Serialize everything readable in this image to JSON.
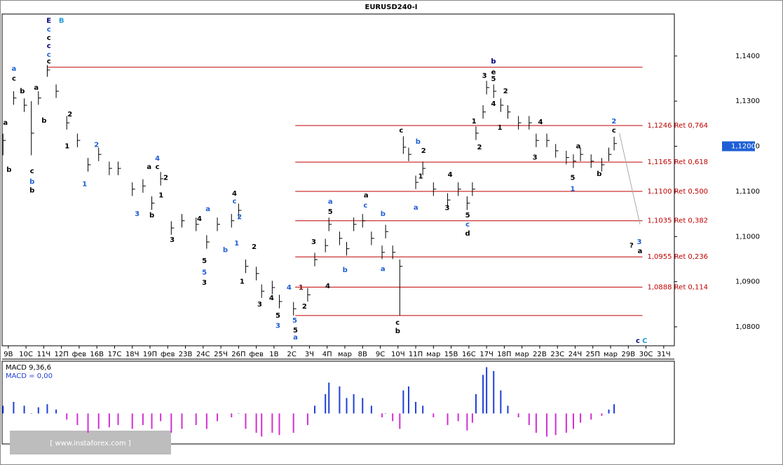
{
  "chart_data": {
    "type": "ohlc",
    "title": "EURUSD240-I",
    "bar_color": "#000000",
    "x": [
      -0.3,
      0.3,
      0.9,
      1.3,
      1.7,
      2.2,
      2.7,
      3.3,
      3.9,
      4.5,
      5.1,
      5.7,
      6.2,
      7.0,
      7.6,
      8.1,
      8.6,
      9.2,
      9.8,
      10.6,
      11.2,
      11.8,
      12.6,
      13.0,
      13.4,
      14.0,
      14.3,
      14.9,
      15.3,
      16.1,
      16.9,
      17.3,
      17.9,
      18.1,
      18.7,
      19.1,
      19.5,
      20.0,
      20.5,
      21.1,
      21.3,
      21.7,
      22.1,
      22.3,
      22.6,
      23.0,
      23.4,
      24.0,
      24.8,
      25.4,
      25.9,
      26.2,
      26.4,
      26.8,
      27.0,
      27.4,
      27.8,
      28.2,
      28.8,
      29.4,
      29.8,
      30.4,
      30.9,
      31.5,
      31.9,
      32.3,
      32.9,
      33.5,
      33.9,
      34.2
    ],
    "high": [
      1.1228,
      1.1322,
      1.1306,
      1.13,
      1.1322,
      1.138,
      1.1337,
      1.1267,
      1.1228,
      1.1174,
      1.1197,
      1.1166,
      1.1166,
      1.112,
      1.1127,
      1.1089,
      1.1143,
      1.1034,
      1.105,
      1.1042,
      1.1003,
      1.1042,
      1.105,
      1.1073,
      1.0949,
      1.0933,
      1.0894,
      1.0902,
      1.0871,
      1.0855,
      1.0886,
      1.0964,
      1.0995,
      1.1042,
      1.1011,
      1.0988,
      1.1042,
      1.105,
      1.1011,
      1.098,
      1.1026,
      1.098,
      1.0949,
      1.1222,
      1.1197,
      1.1135,
      1.1166,
      1.112,
      1.1096,
      1.112,
      1.1089,
      1.112,
      1.1244,
      1.1291,
      1.1345,
      1.1337,
      1.1306,
      1.1291,
      1.1267,
      1.1267,
      1.1228,
      1.1228,
      1.1205,
      1.119,
      1.1182,
      1.1197,
      1.1182,
      1.1174,
      1.1197,
      1.1221
    ],
    "low": [
      1.118,
      1.1292,
      1.1276,
      1.118,
      1.1292,
      1.1354,
      1.1307,
      1.1237,
      1.1198,
      1.1144,
      1.1167,
      1.1136,
      1.1136,
      1.109,
      1.1097,
      1.1059,
      1.1113,
      1.1004,
      1.102,
      1.1012,
      1.0973,
      1.1012,
      1.102,
      1.1043,
      1.0919,
      1.0903,
      1.0864,
      1.0872,
      1.0841,
      1.0825,
      1.0856,
      1.0934,
      1.0965,
      1.1012,
      1.0981,
      1.0958,
      1.1012,
      1.102,
      1.0981,
      1.095,
      1.0996,
      1.095,
      1.0825,
      1.1183,
      1.1167,
      1.1105,
      1.1136,
      1.109,
      1.1066,
      1.109,
      1.1059,
      1.109,
      1.1214,
      1.1261,
      1.1315,
      1.1307,
      1.1276,
      1.1261,
      1.1237,
      1.1237,
      1.1198,
      1.1198,
      1.1175,
      1.116,
      1.1152,
      1.1167,
      1.1152,
      1.1144,
      1.1167,
      1.1191
    ],
    "close": [
      1.1213,
      1.1307,
      1.1291,
      1.1229,
      1.1307,
      1.1369,
      1.1322,
      1.1252,
      1.1213,
      1.1159,
      1.1182,
      1.1151,
      1.1151,
      1.1105,
      1.1112,
      1.1074,
      1.1128,
      1.1019,
      1.1035,
      1.1027,
      1.0988,
      1.1027,
      1.1035,
      1.1058,
      1.0934,
      1.0918,
      1.0879,
      1.0887,
      1.0856,
      1.084,
      1.0871,
      1.0949,
      1.098,
      1.1027,
      1.0996,
      1.0973,
      1.1027,
      1.1035,
      1.0996,
      1.0965,
      1.1011,
      1.0965,
      1.0934,
      1.1198,
      1.1182,
      1.112,
      1.1151,
      1.1105,
      1.1081,
      1.1105,
      1.1074,
      1.1105,
      1.1229,
      1.1276,
      1.133,
      1.1322,
      1.1291,
      1.1276,
      1.1252,
      1.1252,
      1.1213,
      1.1213,
      1.119,
      1.1175,
      1.1167,
      1.1182,
      1.1167,
      1.1159,
      1.1182,
      1.1206
    ],
    "xlim": [
      -0.35,
      37.6
    ],
    "xticks": [
      {
        "value": 0,
        "label": "9В"
      },
      {
        "value": 1,
        "label": "10С"
      },
      {
        "value": 2,
        "label": "11Ч"
      },
      {
        "value": 3,
        "label": "12П"
      },
      {
        "value": 4,
        "label": "фев"
      },
      {
        "value": 5,
        "label": "16В"
      },
      {
        "value": 6,
        "label": "17С"
      },
      {
        "value": 7,
        "label": "18Ч"
      },
      {
        "value": 8,
        "label": "19П"
      },
      {
        "value": 9,
        "label": "фев"
      },
      {
        "value": 10,
        "label": "23В"
      },
      {
        "value": 11,
        "label": "24С"
      },
      {
        "value": 12,
        "label": "25Ч"
      },
      {
        "value": 13,
        "label": "26П"
      },
      {
        "value": 14,
        "label": "фев"
      },
      {
        "value": 15,
        "label": "1В"
      },
      {
        "value": 16,
        "label": "2С"
      },
      {
        "value": 17,
        "label": "3Ч"
      },
      {
        "value": 18,
        "label": "4П"
      },
      {
        "value": 19,
        "label": "мар"
      },
      {
        "value": 20,
        "label": "8В"
      },
      {
        "value": 21,
        "label": "9С"
      },
      {
        "value": 22,
        "label": "10Ч"
      },
      {
        "value": 23,
        "label": "11П"
      },
      {
        "value": 24,
        "label": "мар"
      },
      {
        "value": 25,
        "label": "15В"
      },
      {
        "value": 26,
        "label": "16С"
      },
      {
        "value": 27,
        "label": "17Ч"
      },
      {
        "value": 28,
        "label": "18П"
      },
      {
        "value": 29,
        "label": "мар"
      },
      {
        "value": 30,
        "label": "22В"
      },
      {
        "value": 31,
        "label": "23С"
      },
      {
        "value": 32,
        "label": "24Ч"
      },
      {
        "value": 33,
        "label": "25П"
      },
      {
        "value": 34,
        "label": "мар"
      },
      {
        "value": 35,
        "label": "29В"
      },
      {
        "value": 36,
        "label": "30С"
      },
      {
        "value": 37,
        "label": "31Ч"
      }
    ],
    "ylim": [
      1.0758,
      1.1493
    ],
    "yticks": [
      {
        "value": 1.14,
        "label": "1,1400"
      },
      {
        "value": 1.13,
        "label": "1,1300"
      },
      {
        "value": 1.12,
        "label": "1,1200"
      },
      {
        "value": 1.11,
        "label": "1,1100"
      },
      {
        "value": 1.1,
        "label": "1,1000"
      },
      {
        "value": 1.09,
        "label": "1,0900"
      },
      {
        "value": 1.08,
        "label": "1,0800"
      }
    ],
    "last_price": {
      "value": 1.12,
      "label": "1,1200",
      "color": "#1f5fd6"
    },
    "level_color": "#c00000",
    "levels": [
      1.1375,
      1.0825
    ],
    "fib_levels": [
      {
        "value": 1.1246,
        "label": "1,1246 Ret 0,764"
      },
      {
        "value": 1.1165,
        "label": "1,1165 Ret 0,618"
      },
      {
        "value": 1.11,
        "label": "1,1100 Ret 0,500"
      },
      {
        "value": 1.1035,
        "label": "1,1035 Ret 0,382"
      },
      {
        "value": 1.0955,
        "label": "1,0955 Ret 0,236"
      },
      {
        "value": 1.0888,
        "label": "1,0888 Ret 0,114"
      }
    ],
    "fib_start": 16.2,
    "projection": {
      "color": "#aaaaaa",
      "x": [
        34.5,
        35.66
      ],
      "y": [
        1.1229,
        1.1027
      ]
    },
    "annotations": [
      {
        "text": "E",
        "x": 2.29,
        "y": 1.1478,
        "color": "#000080"
      },
      {
        "text": "B",
        "x": 3.0,
        "y": 1.1478,
        "color": "#1e9ad6"
      },
      {
        "text": "c",
        "x": 2.29,
        "y": 1.1459,
        "color": "#1f5fd6"
      },
      {
        "text": "c",
        "x": 2.29,
        "y": 1.144,
        "color": "#000000"
      },
      {
        "text": "c",
        "x": 2.29,
        "y": 1.1422,
        "color": "#000080"
      },
      {
        "text": "c",
        "x": 2.29,
        "y": 1.1403,
        "color": "#1f5fd6"
      },
      {
        "text": "c",
        "x": 2.29,
        "y": 1.1388,
        "color": "#000000"
      },
      {
        "text": "a",
        "x": 0.32,
        "y": 1.1372,
        "color": "#1f5fd6"
      },
      {
        "text": "c",
        "x": 0.32,
        "y": 1.135,
        "color": "#000000"
      },
      {
        "text": "b",
        "x": 0.79,
        "y": 1.1322,
        "color": "#000000"
      },
      {
        "text": "a",
        "x": 1.58,
        "y": 1.133,
        "color": "#000000"
      },
      {
        "text": "a",
        "x": -0.16,
        "y": 1.1252,
        "color": "#000000"
      },
      {
        "text": "b",
        "x": 0.04,
        "y": 1.1148,
        "color": "#000000"
      },
      {
        "text": "c",
        "x": 1.34,
        "y": 1.1145,
        "color": "#000000"
      },
      {
        "text": "b",
        "x": 1.34,
        "y": 1.1122,
        "color": "#1f5fd6"
      },
      {
        "text": "b",
        "x": 1.34,
        "y": 1.1102,
        "color": "#000000"
      },
      {
        "text": "b",
        "x": 2.02,
        "y": 1.1257,
        "color": "#000000"
      },
      {
        "text": "2",
        "x": 3.48,
        "y": 1.1271,
        "color": "#000000"
      },
      {
        "text": "1",
        "x": 3.32,
        "y": 1.12,
        "color": "#000000"
      },
      {
        "text": "2",
        "x": 4.98,
        "y": 1.1203,
        "color": "#1f5fd6"
      },
      {
        "text": "1",
        "x": 4.31,
        "y": 1.1116,
        "color": "#1f5fd6"
      },
      {
        "text": "4",
        "x": 8.42,
        "y": 1.1173,
        "color": "#1f5fd6"
      },
      {
        "text": "a",
        "x": 7.95,
        "y": 1.1154,
        "color": "#000000"
      },
      {
        "text": "c",
        "x": 8.42,
        "y": 1.1154,
        "color": "#000000"
      },
      {
        "text": "2",
        "x": 8.89,
        "y": 1.113,
        "color": "#000000"
      },
      {
        "text": "1",
        "x": 8.62,
        "y": 1.1091,
        "color": "#000000"
      },
      {
        "text": "3",
        "x": 7.27,
        "y": 1.105,
        "color": "#1f5fd6"
      },
      {
        "text": "b",
        "x": 8.1,
        "y": 1.1047,
        "color": "#000000"
      },
      {
        "text": "3",
        "x": 9.25,
        "y": 1.0993,
        "color": "#000000"
      },
      {
        "text": "4",
        "x": 10.79,
        "y": 1.1039,
        "color": "#000000"
      },
      {
        "text": "a",
        "x": 11.27,
        "y": 1.1061,
        "color": "#1f5fd6"
      },
      {
        "text": "b",
        "x": 12.25,
        "y": 1.097,
        "color": "#1f5fd6"
      },
      {
        "text": "5",
        "x": 11.07,
        "y": 1.0946,
        "color": "#000000"
      },
      {
        "text": "5",
        "x": 11.07,
        "y": 1.092,
        "color": "#1f5fd6"
      },
      {
        "text": "3",
        "x": 11.07,
        "y": 1.0898,
        "color": "#000000"
      },
      {
        "text": "4",
        "x": 12.77,
        "y": 1.1095,
        "color": "#000000"
      },
      {
        "text": "c",
        "x": 12.77,
        "y": 1.1078,
        "color": "#1f5fd6"
      },
      {
        "text": "2",
        "x": 13.05,
        "y": 1.1043,
        "color": "#1f5fd6"
      },
      {
        "text": "1",
        "x": 12.89,
        "y": 1.0985,
        "color": "#1f5fd6"
      },
      {
        "text": "2",
        "x": 13.88,
        "y": 1.0977,
        "color": "#000000"
      },
      {
        "text": "1",
        "x": 13.2,
        "y": 1.09,
        "color": "#000000"
      },
      {
        "text": "3",
        "x": 14.19,
        "y": 1.085,
        "color": "#000000"
      },
      {
        "text": "4",
        "x": 14.86,
        "y": 1.0864,
        "color": "#000000"
      },
      {
        "text": "5",
        "x": 15.22,
        "y": 1.0825,
        "color": "#000000"
      },
      {
        "text": "3",
        "x": 15.22,
        "y": 1.0802,
        "color": "#1f5fd6"
      },
      {
        "text": "4",
        "x": 15.85,
        "y": 1.0887,
        "color": "#1f5fd6"
      },
      {
        "text": "1",
        "x": 16.52,
        "y": 1.0887,
        "color": "#8b0000"
      },
      {
        "text": "2",
        "x": 16.72,
        "y": 1.0845,
        "color": "#000000"
      },
      {
        "text": "5",
        "x": 16.17,
        "y": 1.0814,
        "color": "#1f5fd6"
      },
      {
        "text": "5",
        "x": 16.21,
        "y": 1.0792,
        "color": "#000000"
      },
      {
        "text": "a",
        "x": 16.21,
        "y": 1.0777,
        "color": "#1f5fd6"
      },
      {
        "text": "3",
        "x": 17.24,
        "y": 1.0988,
        "color": "#000000"
      },
      {
        "text": "4",
        "x": 18.03,
        "y": 1.089,
        "color": "#000000"
      },
      {
        "text": "a",
        "x": 18.18,
        "y": 1.1077,
        "color": "#1f5fd6"
      },
      {
        "text": "5",
        "x": 18.18,
        "y": 1.1055,
        "color": "#000000"
      },
      {
        "text": "b",
        "x": 19.01,
        "y": 1.0926,
        "color": "#1f5fd6"
      },
      {
        "text": "a",
        "x": 20.2,
        "y": 1.1091,
        "color": "#000000"
      },
      {
        "text": "c",
        "x": 20.16,
        "y": 1.1069,
        "color": "#1f5fd6"
      },
      {
        "text": "b",
        "x": 21.15,
        "y": 1.105,
        "color": "#1f5fd6"
      },
      {
        "text": "a",
        "x": 21.15,
        "y": 1.0928,
        "color": "#1f5fd6"
      },
      {
        "text": "c",
        "x": 21.98,
        "y": 1.0809,
        "color": "#000000"
      },
      {
        "text": "b",
        "x": 21.98,
        "y": 1.0791,
        "color": "#000000"
      },
      {
        "text": "c",
        "x": 22.18,
        "y": 1.1235,
        "color": "#000000"
      },
      {
        "text": "b",
        "x": 23.13,
        "y": 1.121,
        "color": "#1f5fd6"
      },
      {
        "text": "2",
        "x": 23.44,
        "y": 1.119,
        "color": "#000000"
      },
      {
        "text": "1",
        "x": 23.28,
        "y": 1.1133,
        "color": "#000000"
      },
      {
        "text": "a",
        "x": 23.01,
        "y": 1.1064,
        "color": "#1f5fd6"
      },
      {
        "text": "4",
        "x": 24.94,
        "y": 1.1137,
        "color": "#000000"
      },
      {
        "text": "3",
        "x": 24.78,
        "y": 1.1063,
        "color": "#000000"
      },
      {
        "text": "5",
        "x": 25.93,
        "y": 1.1047,
        "color": "#000000"
      },
      {
        "text": "c",
        "x": 25.93,
        "y": 1.1027,
        "color": "#1f5fd6"
      },
      {
        "text": "d",
        "x": 25.93,
        "y": 1.1007,
        "color": "#000000"
      },
      {
        "text": "1",
        "x": 26.29,
        "y": 1.1255,
        "color": "#000000"
      },
      {
        "text": "2",
        "x": 26.6,
        "y": 1.1198,
        "color": "#000000"
      },
      {
        "text": "3",
        "x": 26.88,
        "y": 1.1356,
        "color": "#000000"
      },
      {
        "text": "b",
        "x": 27.39,
        "y": 1.1388,
        "color": "#000080"
      },
      {
        "text": "e",
        "x": 27.39,
        "y": 1.1364,
        "color": "#000000"
      },
      {
        "text": "5",
        "x": 27.39,
        "y": 1.1349,
        "color": "#000000"
      },
      {
        "text": "4",
        "x": 27.39,
        "y": 1.1294,
        "color": "#000000"
      },
      {
        "text": "2",
        "x": 28.07,
        "y": 1.1322,
        "color": "#000000"
      },
      {
        "text": "1",
        "x": 27.75,
        "y": 1.1241,
        "color": "#000000"
      },
      {
        "text": "4",
        "x": 30.04,
        "y": 1.1254,
        "color": "#000000"
      },
      {
        "text": "3",
        "x": 29.73,
        "y": 1.1175,
        "color": "#000000"
      },
      {
        "text": "a",
        "x": 32.18,
        "y": 1.12,
        "color": "#000000"
      },
      {
        "text": "5",
        "x": 31.86,
        "y": 1.113,
        "color": "#000000"
      },
      {
        "text": "1",
        "x": 31.86,
        "y": 1.1105,
        "color": "#1f5fd6"
      },
      {
        "text": "b",
        "x": 33.36,
        "y": 1.1139,
        "color": "#000000"
      },
      {
        "text": "2",
        "x": 34.19,
        "y": 1.1255,
        "color": "#1f5fd6"
      },
      {
        "text": "c",
        "x": 34.19,
        "y": 1.1235,
        "color": "#000000"
      },
      {
        "text": "3",
        "x": 35.62,
        "y": 1.0988,
        "color": "#1f5fd6"
      },
      {
        "text": "a",
        "x": 35.66,
        "y": 1.0968,
        "color": "#000000"
      },
      {
        "text": "?",
        "x": 35.18,
        "y": 1.098,
        "color": "#000000"
      },
      {
        "text": "c",
        "x": 35.54,
        "y": 1.0769,
        "color": "#000080"
      },
      {
        "text": "C",
        "x": 35.93,
        "y": 1.0769,
        "color": "#1e9ad6"
      }
    ],
    "macd": {
      "title": "MACD 9,36,6",
      "value_text": "MACD = 0,00",
      "ylim": [
        -0.0035,
        0.0065
      ],
      "pos_color": "#1f3fd6",
      "neg_color": "#d22fd2",
      "values": [
        0.001,
        0.0015,
        0.001,
        0,
        0.0008,
        0.0012,
        0.0005,
        -0.0008,
        -0.0015,
        -0.0025,
        -0.002,
        -0.0018,
        -0.0015,
        -0.002,
        -0.0015,
        -0.002,
        -0.001,
        -0.0025,
        -0.002,
        -0.0015,
        -0.002,
        -0.001,
        -0.0005,
        0,
        -0.002,
        -0.0025,
        -0.003,
        -0.0025,
        -0.0028,
        -0.0025,
        -0.0015,
        0.001,
        0.0025,
        0.004,
        0.0035,
        0.002,
        0.0025,
        0.002,
        0.001,
        -0.0005,
        0,
        -0.001,
        -0.002,
        0.003,
        0.0035,
        0.0015,
        0.001,
        -0.0005,
        -0.0015,
        -0.001,
        -0.0022,
        -0.0012,
        0.0025,
        0.005,
        0.006,
        0.0055,
        0.003,
        0.001,
        -0.0005,
        -0.0015,
        -0.0025,
        -0.003,
        -0.0028,
        -0.0025,
        -0.002,
        -0.0012,
        -0.0008,
        -0.0003,
        0.0005,
        0.0012
      ]
    },
    "watermark": "[ www.instaforex.com ]"
  }
}
